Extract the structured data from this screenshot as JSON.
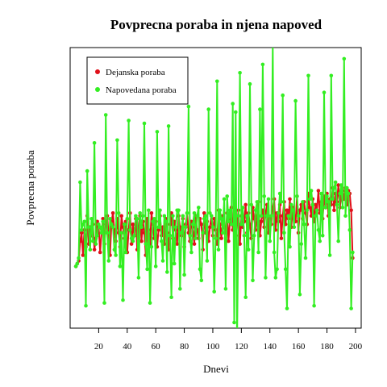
{
  "chart_data": {
    "type": "line",
    "title": "Povprecna poraba in njena napoved",
    "xlabel": "Dnevi",
    "ylabel": "Povprecna poraba",
    "xlim": [
      0,
      204
    ],
    "ylim": [
      0,
      100
    ],
    "x_ticks": [
      20,
      40,
      60,
      80,
      100,
      120,
      140,
      160,
      180,
      200
    ],
    "y_ticks_shown": false,
    "grid": false,
    "legend_position": "top-left",
    "series": [
      {
        "name": "Dejanska poraba",
        "color": "#e0101a",
        "x": [
          4,
          5,
          6,
          7,
          8,
          9,
          10,
          11,
          12,
          13,
          14,
          15,
          16,
          17,
          18,
          19,
          20,
          21,
          22,
          23,
          24,
          25,
          26,
          27,
          28,
          29,
          30,
          31,
          32,
          33,
          34,
          35,
          36,
          37,
          38,
          39,
          40,
          41,
          42,
          43,
          44,
          45,
          46,
          47,
          48,
          49,
          50,
          51,
          52,
          53,
          54,
          55,
          56,
          57,
          58,
          59,
          60,
          61,
          62,
          63,
          64,
          65,
          66,
          67,
          68,
          69,
          70,
          71,
          72,
          73,
          74,
          75,
          76,
          77,
          78,
          79,
          80,
          81,
          82,
          83,
          84,
          85,
          86,
          87,
          88,
          89,
          90,
          91,
          92,
          93,
          94,
          95,
          96,
          97,
          98,
          99,
          100,
          101,
          102,
          103,
          104,
          105,
          106,
          107,
          108,
          109,
          110,
          111,
          112,
          113,
          114,
          115,
          116,
          117,
          118,
          119,
          120,
          121,
          122,
          123,
          124,
          125,
          126,
          127,
          128,
          129,
          130,
          131,
          132,
          133,
          134,
          135,
          136,
          137,
          138,
          139,
          140,
          141,
          142,
          143,
          144,
          145,
          146,
          147,
          148,
          149,
          150,
          151,
          152,
          153,
          154,
          155,
          156,
          157,
          158,
          159,
          160,
          161,
          162,
          163,
          164,
          165,
          166,
          167,
          168,
          169,
          170,
          171,
          172,
          173,
          174,
          175,
          176,
          177,
          178,
          179,
          180,
          181,
          182,
          183,
          184,
          185,
          186,
          187,
          188,
          189,
          190,
          191,
          192,
          193,
          194,
          195,
          196,
          197,
          198
        ],
        "y": [
          22,
          23,
          24,
          31,
          34,
          26,
          35,
          29,
          40,
          30,
          36,
          33,
          37,
          28,
          32,
          38,
          36,
          27,
          34,
          39,
          30,
          37,
          40,
          33,
          26,
          38,
          41,
          35,
          31,
          39,
          34,
          29,
          40,
          36,
          32,
          38,
          27,
          35,
          41,
          30,
          37,
          33,
          39,
          28,
          36,
          40,
          31,
          38,
          34,
          26,
          39,
          35,
          30,
          41,
          37,
          32,
          38,
          29,
          35,
          40,
          33,
          36,
          30,
          39,
          34,
          28,
          37,
          41,
          32,
          38,
          35,
          30,
          40,
          36,
          33,
          39,
          29,
          37,
          41,
          34,
          31,
          38,
          36,
          30,
          40,
          35,
          32,
          39,
          37,
          28,
          41,
          34,
          38,
          31,
          36,
          40,
          33,
          39,
          35,
          30,
          42,
          37,
          32,
          40,
          36,
          34,
          41,
          31,
          38,
          43,
          35,
          39,
          33,
          37,
          42,
          30,
          40,
          36,
          38,
          44,
          34,
          41,
          37,
          32,
          43,
          39,
          35,
          40,
          45,
          33,
          38,
          42,
          36,
          41,
          44,
          34,
          39,
          37,
          43,
          46,
          35,
          41,
          38,
          44,
          32,
          40,
          45,
          37,
          42,
          39,
          46,
          36,
          43,
          40,
          38,
          47,
          34,
          42,
          44,
          39,
          45,
          41,
          37,
          48,
          43,
          40,
          46,
          38,
          44,
          42,
          49,
          41,
          45,
          39,
          47,
          43,
          48,
          40,
          46,
          44,
          50,
          42,
          48,
          45,
          51,
          43,
          47,
          49,
          46,
          50,
          44,
          49,
          48,
          42,
          25
        ]
      },
      {
        "name": "Napovedana poraba",
        "color": "#33ee22",
        "x": [
          4,
          5,
          6,
          7,
          8,
          9,
          10,
          11,
          12,
          13,
          14,
          15,
          16,
          17,
          18,
          19,
          20,
          21,
          22,
          23,
          24,
          25,
          26,
          27,
          28,
          29,
          30,
          31,
          32,
          33,
          34,
          35,
          36,
          37,
          38,
          39,
          40,
          41,
          42,
          43,
          44,
          45,
          46,
          47,
          48,
          49,
          50,
          51,
          52,
          53,
          54,
          55,
          56,
          57,
          58,
          59,
          60,
          61,
          62,
          63,
          64,
          65,
          66,
          67,
          68,
          69,
          70,
          71,
          72,
          73,
          74,
          75,
          76,
          77,
          78,
          79,
          80,
          81,
          82,
          83,
          84,
          85,
          86,
          87,
          88,
          89,
          90,
          91,
          92,
          93,
          94,
          95,
          96,
          97,
          98,
          99,
          100,
          101,
          102,
          103,
          104,
          105,
          106,
          107,
          108,
          109,
          110,
          111,
          112,
          113,
          114,
          115,
          116,
          117,
          118,
          119,
          120,
          121,
          122,
          123,
          124,
          125,
          126,
          127,
          128,
          129,
          130,
          131,
          132,
          133,
          134,
          135,
          136,
          137,
          138,
          139,
          140,
          141,
          142,
          143,
          144,
          145,
          146,
          147,
          148,
          149,
          150,
          151,
          152,
          153,
          154,
          155,
          156,
          157,
          158,
          159,
          160,
          161,
          162,
          163,
          164,
          165,
          166,
          167,
          168,
          169,
          170,
          171,
          172,
          173,
          174,
          175,
          176,
          177,
          178,
          179,
          180,
          181,
          182,
          183,
          184,
          185,
          186,
          187,
          188,
          189,
          190,
          191,
          192,
          193,
          194,
          195,
          196,
          197,
          198
        ],
        "y": [
          22,
          23,
          25,
          52,
          35,
          37,
          38,
          8,
          56,
          36,
          28,
          39,
          31,
          66,
          30,
          33,
          37,
          36,
          34,
          38,
          9,
          76,
          34,
          24,
          39,
          37,
          36,
          28,
          26,
          67,
          41,
          22,
          34,
          10,
          37,
          27,
          39,
          74,
          35,
          32,
          31,
          33,
          40,
          39,
          18,
          41,
          36,
          40,
          73,
          30,
          21,
          42,
          9,
          29,
          38,
          39,
          22,
          70,
          36,
          42,
          31,
          24,
          40,
          38,
          20,
          72,
          33,
          11,
          40,
          23,
          36,
          42,
          42,
          14,
          34,
          40,
          19,
          36,
          41,
          79,
          33,
          27,
          37,
          41,
          32,
          40,
          43,
          21,
          17,
          34,
          39,
          40,
          24,
          78,
          41,
          40,
          36,
          13,
          32,
          88,
          28,
          42,
          39,
          34,
          46,
          14,
          47,
          38,
          42,
          37,
          80,
          2,
          77,
          -5,
          40,
          91,
          37,
          43,
          33,
          11,
          40,
          28,
          87,
          44,
          17,
          33,
          42,
          45,
          27,
          78,
          40,
          94,
          47,
          18,
          40,
          46,
          31,
          40,
          101,
          27,
          18,
          21,
          41,
          48,
          45,
          83,
          34,
          21,
          7,
          40,
          29,
          44,
          42,
          36,
          81,
          47,
          40,
          12,
          30,
          45,
          37,
          25,
          42,
          90,
          46,
          49,
          44,
          8,
          40,
          42,
          35,
          31,
          48,
          33,
          84,
          43,
          47,
          45,
          26,
          90,
          46,
          50,
          52,
          44,
          31,
          48,
          51,
          43,
          96,
          40,
          50,
          48,
          35,
          7,
          27
        ]
      }
    ]
  }
}
